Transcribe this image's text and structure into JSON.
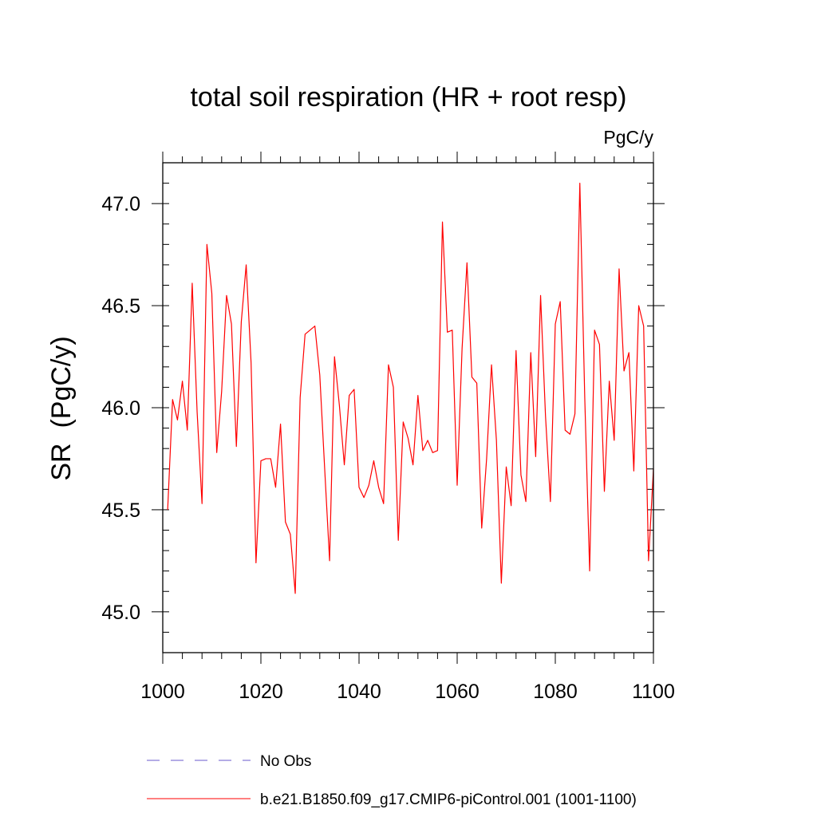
{
  "chart_data": {
    "type": "line",
    "title": "total soil respiration (HR + root resp)",
    "units_label": "PgC/y",
    "ylabel": "SR  (PgC/y)",
    "xlabel": "",
    "xlim": [
      1000,
      1100
    ],
    "ylim": [
      44.8,
      47.2
    ],
    "x_ticks": [
      1000,
      1020,
      1040,
      1060,
      1080,
      1100
    ],
    "x_tick_labels": [
      "1000",
      "1020",
      "1040",
      "1060",
      "1080",
      "1100"
    ],
    "y_ticks": [
      45.0,
      45.5,
      46.0,
      46.5,
      47.0
    ],
    "y_tick_labels": [
      "45.0",
      "45.5",
      "46.0",
      "46.5",
      "47.0"
    ],
    "grid": false,
    "legend_position": "bottom",
    "series": [
      {
        "name": "b.e21.B1850.f09_g17.CMIP6-piControl.001 (1001-1100)",
        "color": "#ff0000",
        "style": "solid",
        "x_start": 1001,
        "x_step": 1,
        "values": [
          45.5,
          46.04,
          45.94,
          46.13,
          45.89,
          46.61,
          45.98,
          45.53,
          46.8,
          46.56,
          45.78,
          46.08,
          46.55,
          46.41,
          45.81,
          46.42,
          46.7,
          46.22,
          45.24,
          45.74,
          45.75,
          45.75,
          45.61,
          45.92,
          45.44,
          45.38,
          45.09,
          46.05,
          46.36,
          46.38,
          46.4,
          46.16,
          45.7,
          45.25,
          46.25,
          46.01,
          45.72,
          46.06,
          46.09,
          45.61,
          45.56,
          45.62,
          45.74,
          45.61,
          45.53,
          46.21,
          46.1,
          45.35,
          45.93,
          45.85,
          45.72,
          46.06,
          45.79,
          45.84,
          45.78,
          45.79,
          46.91,
          46.37,
          46.38,
          45.62,
          46.29,
          46.71,
          46.15,
          46.12,
          45.41,
          45.75,
          46.21,
          45.84,
          45.14,
          45.71,
          45.52,
          46.28,
          45.67,
          45.54,
          46.27,
          45.76,
          46.55,
          45.96,
          45.54,
          46.41,
          46.52,
          45.89,
          45.87,
          45.97,
          47.1,
          46.05,
          45.2,
          46.38,
          46.31,
          45.59,
          46.13,
          45.84,
          46.68,
          46.18,
          46.27,
          45.69,
          46.5,
          46.4,
          45.25,
          45.7
        ]
      },
      {
        "name": "No Obs",
        "color": "#6a5acd",
        "style": "dashed",
        "values": []
      }
    ]
  }
}
